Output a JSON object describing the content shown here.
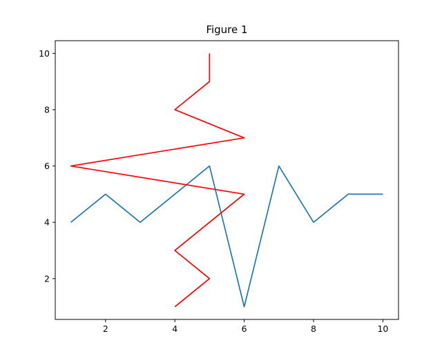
{
  "figure": {
    "background": "#ffffff"
  },
  "chart_data": {
    "type": "line",
    "title": "Figure 1",
    "xlabel": "",
    "ylabel": "",
    "xlim": [
      0.55,
      10.45
    ],
    "ylim": [
      0.55,
      10.45
    ],
    "xticks": [
      2,
      4,
      6,
      8,
      10
    ],
    "yticks": [
      2,
      4,
      6,
      8,
      10
    ],
    "grid": false,
    "legend": null,
    "series": [
      {
        "name": "blue-line",
        "color": "#1f77b4",
        "x": [
          1,
          2,
          3,
          4,
          5,
          6,
          7,
          8,
          9,
          10
        ],
        "y": [
          4,
          5,
          4,
          5,
          6,
          1,
          6,
          4,
          5,
          5
        ]
      },
      {
        "name": "red-line",
        "color": "#ff0000",
        "x": [
          5,
          5,
          4,
          6,
          1,
          6,
          5,
          4,
          5,
          4
        ],
        "y": [
          10,
          9,
          8,
          7,
          6,
          5,
          4,
          3,
          2,
          1
        ]
      }
    ]
  }
}
